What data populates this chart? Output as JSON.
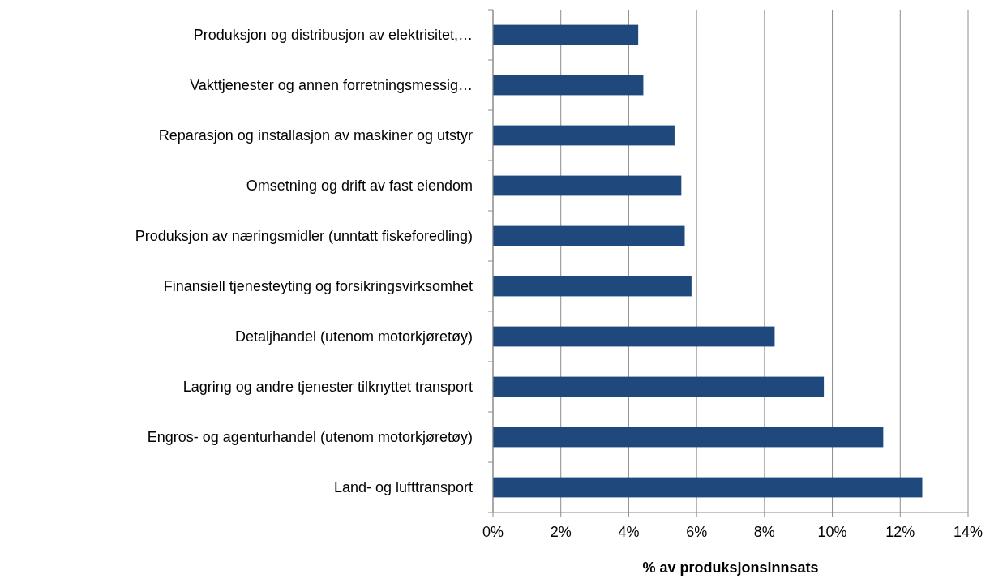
{
  "chart_data": {
    "type": "bar",
    "orientation": "horizontal",
    "xlabel": "% av produksjonsinnsats",
    "categories": [
      "Produksjon og distribusjon av elektrisitet,…",
      "Vakttjenester og annen forretningsmessig…",
      "Reparasjon og installasjon av maskiner og utstyr",
      "Omsetning og drift av fast eiendom",
      "Produksjon av næringsmidler (unntatt fiskeforedling)",
      "Finansiell tjenesteyting og forsikringsvirksomhet",
      "Detaljhandel (utenom motorkjøretøy)",
      "Lagring og andre tjenester tilknyttet transport",
      "Engros- og agenturhandel (utenom motorkjøretøy)",
      "Land- og lufttransport"
    ],
    "values": [
      4.28,
      4.43,
      5.35,
      5.55,
      5.65,
      5.85,
      8.3,
      9.75,
      11.5,
      12.65
    ],
    "color": "#1f497d",
    "xlim": [
      0,
      14
    ],
    "xticks": [
      {
        "value": 0,
        "label": "0%"
      },
      {
        "value": 2,
        "label": "2%"
      },
      {
        "value": 4,
        "label": "4%"
      },
      {
        "value": 6,
        "label": "6%"
      },
      {
        "value": 8,
        "label": "8%"
      },
      {
        "value": 10,
        "label": "10%"
      },
      {
        "value": 12,
        "label": "12%"
      },
      {
        "value": 14,
        "label": "14%"
      }
    ],
    "grid": "x"
  }
}
